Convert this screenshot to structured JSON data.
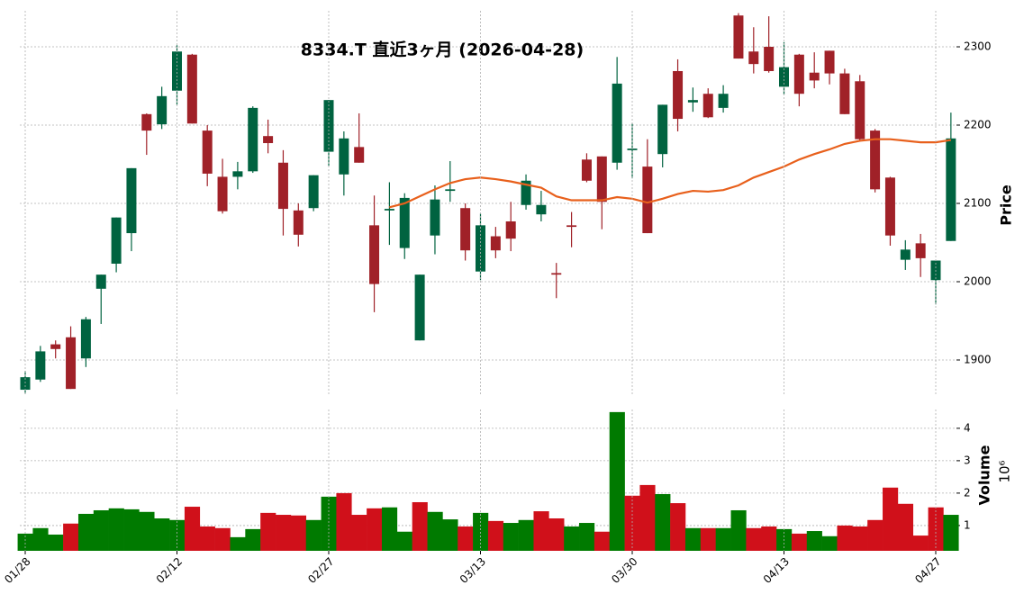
{
  "chart_data": [
    {
      "type": "candlestick",
      "title": "8334.T  直近3ヶ月  (2026-04-28)",
      "ylabel": "Price",
      "ylim": [
        1854,
        2346
      ],
      "yticks": [
        1900,
        2000,
        2100,
        2200,
        2300
      ],
      "grid": true,
      "up_color": "#006340",
      "down_color": "#a02128",
      "open": [
        1862,
        1875,
        1920,
        1929,
        1902,
        1991,
        2023,
        2062,
        2214,
        2201,
        2244,
        2290,
        2193,
        2134,
        2134,
        2141,
        2186,
        2152,
        2091,
        2094,
        2166,
        2137,
        2172,
        2072,
        2091,
        2043,
        1925,
        2059,
        2116,
        2094,
        2013,
        2058,
        2077,
        2098,
        2086,
        2011,
        2072,
        2156,
        2160,
        2152,
        2168,
        2147,
        2163,
        2269,
        2229,
        2240,
        2222,
        2340,
        2294,
        2300,
        2249,
        2290,
        2267,
        2295,
        2266,
        2256,
        2193,
        2133,
        2028,
        2049,
        2002,
        2052
      ],
      "high": [
        1886,
        1918,
        1925,
        1943,
        1955,
        2009,
        2082,
        2145,
        2215,
        2249,
        2302,
        2291,
        2200,
        2157,
        2153,
        2224,
        2207,
        2168,
        2100,
        2136,
        2232,
        2192,
        2215,
        2110,
        2127,
        2113,
        2009,
        2123,
        2154,
        2100,
        2087,
        2070,
        2102,
        2137,
        2116,
        2024,
        2089,
        2164,
        2160,
        2287,
        2202,
        2182,
        2226,
        2284,
        2248,
        2247,
        2251,
        2343,
        2325,
        2339,
        2306,
        2291,
        2293,
        2295,
        2272,
        2264,
        2195,
        2134,
        2053,
        2061,
        2027,
        2216
      ],
      "low": [
        1857,
        1872,
        1902,
        1863,
        1891,
        1946,
        2012,
        2039,
        2162,
        2195,
        2226,
        2202,
        2122,
        2087,
        2118,
        2139,
        2164,
        2059,
        2045,
        2090,
        2148,
        2110,
        2152,
        1961,
        2047,
        2029,
        1925,
        2035,
        2102,
        2027,
        2002,
        2030,
        2039,
        2092,
        2077,
        1979,
        2044,
        2127,
        2067,
        2143,
        2132,
        2062,
        2146,
        2192,
        2217,
        2209,
        2216,
        2285,
        2266,
        2267,
        2239,
        2224,
        2247,
        2252,
        2214,
        2179,
        2114,
        2046,
        2015,
        2006,
        1971,
        2052
      ],
      "close": [
        1878,
        1911,
        1914,
        1863,
        1952,
        2009,
        2082,
        2145,
        2193,
        2237,
        2294,
        2202,
        2138,
        2090,
        2141,
        2222,
        2177,
        2093,
        2060,
        2136,
        2232,
        2183,
        2152,
        1997,
        2093,
        2107,
        2009,
        2105,
        2118,
        2040,
        2072,
        2040,
        2055,
        2129,
        2098,
        2009,
        2070,
        2129,
        2102,
        2253,
        2170,
        2062,
        2226,
        2208,
        2232,
        2210,
        2240,
        2285,
        2278,
        2269,
        2274,
        2240,
        2257,
        2266,
        2214,
        2182,
        2118,
        2059,
        2041,
        2030,
        2027,
        2183
      ],
      "ma_color": "#e8601c",
      "ma_values": [
        null,
        null,
        null,
        null,
        null,
        null,
        null,
        null,
        null,
        null,
        null,
        null,
        null,
        null,
        null,
        null,
        null,
        null,
        null,
        null,
        null,
        null,
        null,
        null,
        2095,
        2100,
        2109,
        2118,
        2126,
        2131,
        2133,
        2131,
        2128,
        2124,
        2120,
        2109,
        2104,
        2104,
        2104,
        2108,
        2106,
        2101,
        2106,
        2112,
        2116,
        2115,
        2117,
        2123,
        2133,
        2140,
        2147,
        2156,
        2163,
        2169,
        2176,
        2180,
        2182,
        2182,
        2180,
        2178,
        2178,
        2181
      ]
    },
    {
      "type": "bar",
      "ylabel": "Volume",
      "scale_label": "10⁶",
      "ylim": [
        0.22,
        4.58
      ],
      "yticks": [
        1,
        2,
        3,
        4
      ],
      "grid": true,
      "up_color": "#007a00",
      "down_color": "#d0101a",
      "categories": [
        "01/28",
        null,
        null,
        null,
        null,
        null,
        null,
        null,
        null,
        null,
        "02/12",
        null,
        null,
        null,
        null,
        null,
        null,
        null,
        null,
        null,
        "02/27",
        null,
        null,
        null,
        null,
        null,
        null,
        null,
        null,
        null,
        "03/13",
        null,
        null,
        null,
        null,
        null,
        null,
        null,
        null,
        null,
        "03/30",
        null,
        null,
        null,
        null,
        null,
        null,
        null,
        null,
        null,
        "04/13",
        null,
        null,
        null,
        null,
        null,
        null,
        null,
        null,
        null,
        "04/27",
        null
      ],
      "values": [
        0.75,
        0.92,
        0.72,
        1.06,
        1.36,
        1.47,
        1.53,
        1.5,
        1.42,
        1.22,
        1.17,
        1.58,
        0.97,
        0.92,
        0.64,
        0.89,
        1.39,
        1.33,
        1.31,
        1.17,
        1.89,
        2.0,
        1.33,
        1.53,
        1.56,
        0.81,
        1.72,
        1.42,
        1.19,
        0.97,
        1.39,
        1.14,
        1.08,
        1.17,
        1.44,
        1.22,
        0.97,
        1.08,
        0.81,
        4.5,
        1.92,
        2.25,
        1.97,
        1.69,
        0.92,
        0.92,
        0.92,
        1.47,
        0.92,
        0.97,
        0.89,
        0.75,
        0.83,
        0.67,
        1.0,
        0.97,
        1.17,
        2.17,
        1.67,
        0.69,
        1.56,
        1.33
      ]
    }
  ]
}
